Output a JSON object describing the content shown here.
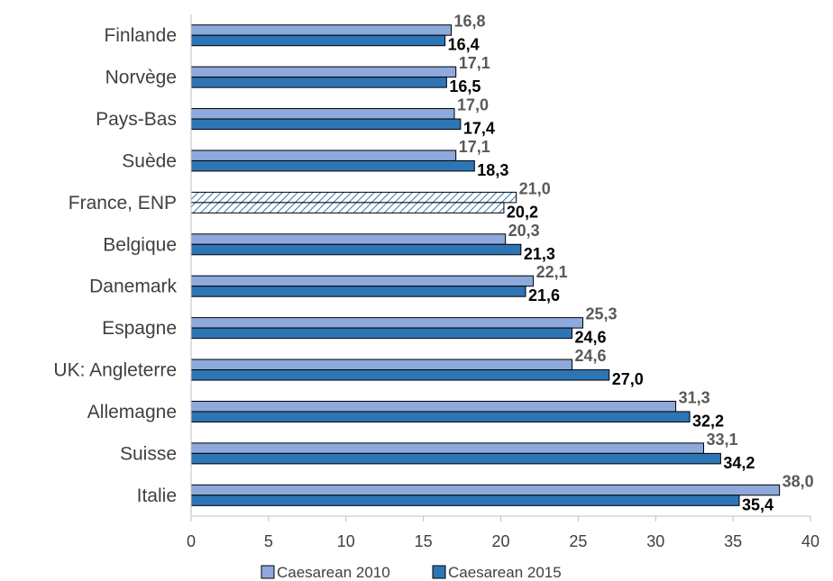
{
  "chart_data": {
    "type": "bar",
    "orientation": "horizontal",
    "categories": [
      "Finlande",
      "Norvège",
      "Pays-Bas",
      "Suède",
      "France, ENP",
      "Belgique",
      "Danemark",
      "Espagne",
      "UK: Angleterre",
      "Allemagne",
      "Suisse",
      "Italie"
    ],
    "series": [
      {
        "name": "Caesarean 2010",
        "values": [
          16.8,
          17.1,
          17.0,
          17.1,
          21.0,
          20.3,
          22.1,
          25.3,
          24.6,
          31.3,
          33.1,
          38.0
        ],
        "labels": [
          "16,8",
          "17,1",
          "17,0",
          "17,1",
          "21,0",
          "20,3",
          "22,1",
          "25,3",
          "24,6",
          "31,3",
          "33,1",
          "38,0"
        ],
        "color": "#8EA9DB"
      },
      {
        "name": "Caesarean 2015",
        "values": [
          16.4,
          16.5,
          17.4,
          18.3,
          20.2,
          21.3,
          21.6,
          24.6,
          27.0,
          32.2,
          34.2,
          35.4
        ],
        "labels": [
          "16,4",
          "16,5",
          "17,4",
          "18,3",
          "20,2",
          "21,3",
          "21,6",
          "24,6",
          "27,0",
          "32,2",
          "34,2",
          "35,4"
        ],
        "color": "#2E75B6"
      }
    ],
    "highlight_category": "France, ENP",
    "highlight_pattern": "diagonal-hatch",
    "xlim": [
      0,
      40
    ],
    "xticks": [
      "0",
      "5",
      "10",
      "15",
      "20",
      "25",
      "30",
      "35",
      "40"
    ],
    "grid": false,
    "legend_position": "bottom"
  }
}
